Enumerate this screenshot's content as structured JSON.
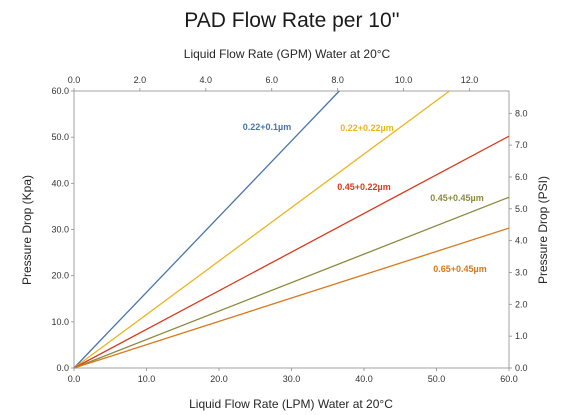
{
  "chart_data": {
    "type": "line",
    "title": "PAD Flow Rate per 10''",
    "xlabel": "Liquid Flow Rate (LPM) Water at 20°C",
    "x2label": "Liquid Flow Rate (GPM) Water at 20°C",
    "ylabel": "Pressure Drop (Kpa)",
    "y2label": "Pressure Drop (PSI)",
    "xlim": [
      0,
      60
    ],
    "ylim": [
      0,
      60
    ],
    "x2lim": [
      0,
      13.2
    ],
    "y2lim": [
      0,
      8.7
    ],
    "x_ticks": [
      "0.0",
      "10.0",
      "20.0",
      "30.0",
      "40.0",
      "50.0",
      "60.0"
    ],
    "y_ticks": [
      "0.0",
      "10.0",
      "20.0",
      "30.0",
      "40.0",
      "50.0",
      "60.0"
    ],
    "x2_ticks": [
      "0.0",
      "2.0",
      "4.0",
      "6.0",
      "8.0",
      "10.0",
      "12.0"
    ],
    "y2_ticks": [
      "0.0",
      "1.0",
      "2.0",
      "3.0",
      "4.0",
      "5.0",
      "6.0",
      "7.0",
      "8.0"
    ],
    "grid": false,
    "series": [
      {
        "name": "0.22+0.1µm",
        "color": "#4a74a8",
        "x": [
          0,
          36.6
        ],
        "y": [
          0,
          60
        ]
      },
      {
        "name": "0.22+0.22µm",
        "color": "#eab520",
        "x": [
          0,
          51.8
        ],
        "y": [
          0,
          60
        ]
      },
      {
        "name": "0.45+0.22µm",
        "color": "#d93a1e",
        "x": [
          0,
          60
        ],
        "y": [
          0,
          50.2
        ]
      },
      {
        "name": "0.45+0.45µm",
        "color": "#8a8a3e",
        "x": [
          0,
          60
        ],
        "y": [
          0,
          37
        ]
      },
      {
        "name": "0.65+0.45µm",
        "color": "#d7791c",
        "x": [
          0,
          60
        ],
        "y": [
          0,
          30.3
        ]
      }
    ]
  }
}
